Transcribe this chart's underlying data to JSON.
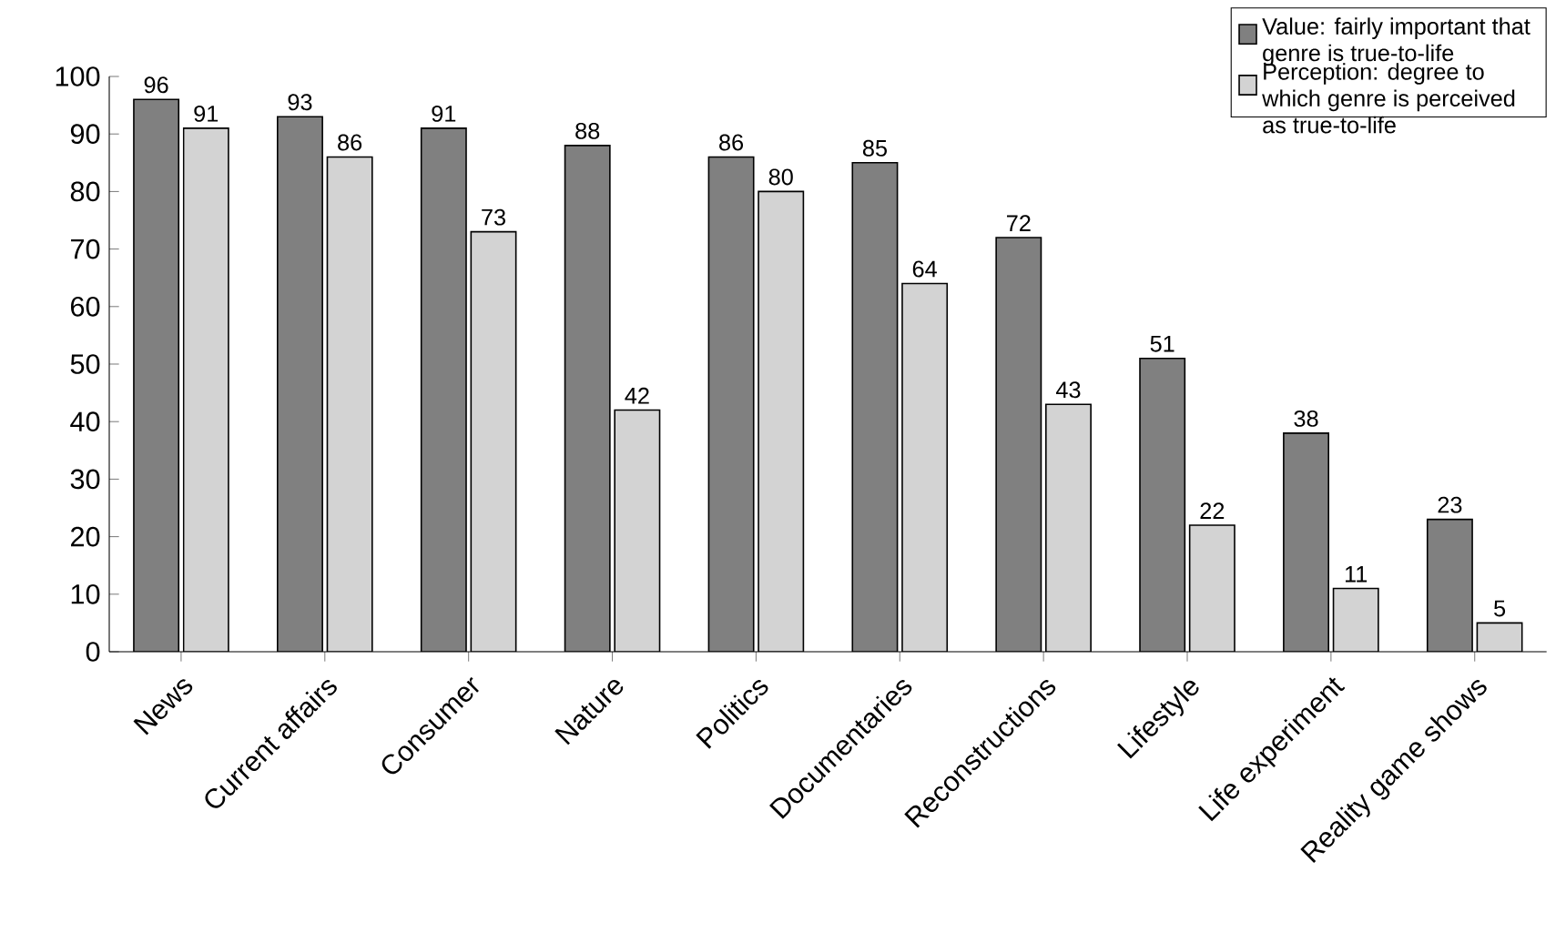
{
  "chart_data": {
    "type": "bar",
    "categories": [
      "News",
      "Current affairs",
      "Consumer",
      "Nature",
      "Politics",
      "Documentaries",
      "Reconstructions",
      "Lifestyle",
      "Life experiment",
      "Reality game shows"
    ],
    "series": [
      {
        "name": "Value: fairly important that genre is true-to-life",
        "color": "#808080",
        "values": [
          96,
          93,
          91,
          88,
          86,
          85,
          72,
          51,
          38,
          23
        ]
      },
      {
        "name": "Perception: degree to which genre is perceived as true-to-life",
        "color": "#d3d3d3",
        "values": [
          91,
          86,
          73,
          42,
          80,
          64,
          43,
          22,
          11,
          5
        ]
      }
    ],
    "ylim": [
      0,
      100
    ],
    "yticks": [
      0,
      10,
      20,
      30,
      40,
      50,
      60,
      70,
      80,
      90,
      100
    ],
    "data_labels": true,
    "legend": "top right",
    "grid": false
  }
}
